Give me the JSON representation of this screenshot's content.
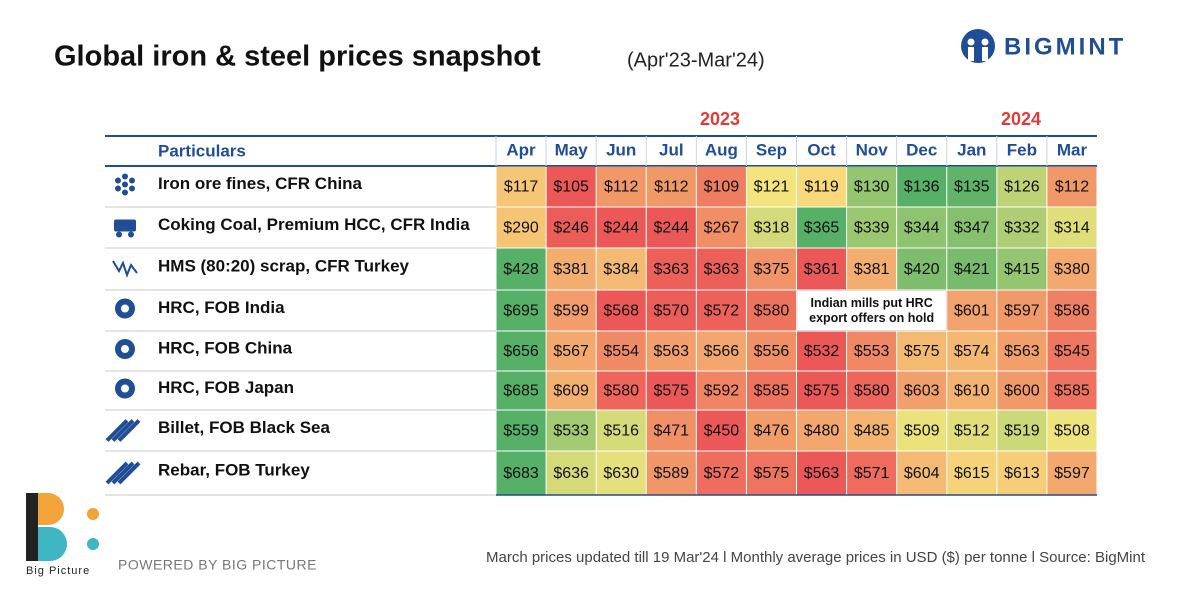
{
  "header": {
    "title": "Global iron & steel prices snapshot",
    "subtitle": "(Apr'23-Mar'24)",
    "brand": "BIGMINT"
  },
  "table": {
    "years": [
      "2023",
      "2024"
    ],
    "header_label": "Particulars",
    "columns": [
      "Apr",
      "May",
      "Jun",
      "Jul",
      "Aug",
      "Sep",
      "Oct",
      "Nov",
      "Dec",
      "Jan",
      "Feb",
      "Mar"
    ],
    "rows": [
      {
        "label": "Iron ore fines, CFR China",
        "cells": [
          "$117",
          "$105",
          "$112",
          "$112",
          "$109",
          "$121",
          "$119",
          "$130",
          "$136",
          "$135",
          "$126",
          "$112"
        ]
      },
      {
        "label": "Coking Coal, Premium HCC, CFR India",
        "cells": [
          "$290",
          "$246",
          "$244",
          "$244",
          "$267",
          "$318",
          "$365",
          "$339",
          "$344",
          "$347",
          "$332",
          "$314"
        ]
      },
      {
        "label": "HMS (80:20) scrap, CFR Turkey",
        "cells": [
          "$428",
          "$381",
          "$384",
          "$363",
          "$363",
          "$375",
          "$361",
          "$381",
          "$420",
          "$421",
          "$415",
          "$380"
        ]
      },
      {
        "label": "HRC, FOB India",
        "cells": [
          "$695",
          "$599",
          "$568",
          "$570",
          "$572",
          "$580",
          null,
          null,
          null,
          "$601",
          "$597",
          "$586"
        ],
        "note": "Indian mills put HRC export offers on hold"
      },
      {
        "label": "HRC, FOB China",
        "cells": [
          "$656",
          "$567",
          "$554",
          "$563",
          "$566",
          "$556",
          "$532",
          "$553",
          "$575",
          "$574",
          "$563",
          "$545"
        ]
      },
      {
        "label": "HRC, FOB Japan",
        "cells": [
          "$685",
          "$609",
          "$580",
          "$575",
          "$592",
          "$585",
          "$575",
          "$580",
          "$603",
          "$610",
          "$600",
          "$585"
        ]
      },
      {
        "label": "Billet, FOB Black Sea",
        "cells": [
          "$559",
          "$533",
          "$516",
          "$471",
          "$450",
          "$476",
          "$480",
          "$485",
          "$509",
          "$512",
          "$519",
          "$508"
        ]
      },
      {
        "label": "Rebar, FOB Turkey",
        "cells": [
          "$683",
          "$636",
          "$630",
          "$589",
          "$572",
          "$575",
          "$563",
          "$571",
          "$604",
          "$615",
          "$613",
          "$597"
        ]
      }
    ]
  },
  "footer": {
    "logo_text": "Big Picture",
    "powered": "POWERED BY BIG PICTURE",
    "note": "March prices updated till 19 Mar'24  l  Monthly average prices in USD ($) per tonne  l  Source: BigMint"
  }
}
